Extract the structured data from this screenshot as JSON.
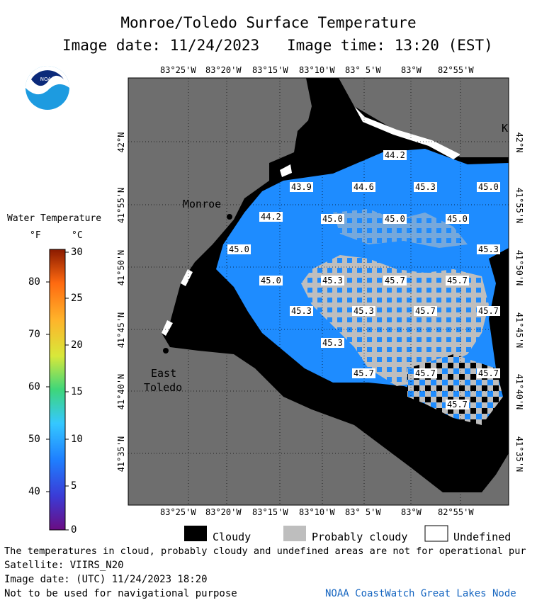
{
  "header": {
    "title": "Monroe/Toledo Surface Temperature",
    "date_label": "Image date: 11/24/2023",
    "time_label": "Image time: 13:20 (EST)"
  },
  "logo": {
    "text": "NOAA"
  },
  "map": {
    "lon_ticks": [
      "83°25'W",
      "83°20'W",
      "83°15'W",
      "83°10'W",
      "83° 5'W",
      "83°W",
      "82°55'W"
    ],
    "lat_ticks": [
      "42°N",
      "41°55'N",
      "41°50'N",
      "41°45'N",
      "41°40'N",
      "41°35'N"
    ],
    "places": {
      "monroe": "Monroe",
      "east": "East",
      "toledo": "Toledo",
      "k": "K"
    },
    "temp_labels": [
      "44.2",
      "43.9",
      "44.6",
      "45.3",
      "45.0",
      "44.2",
      "45.0",
      "45.0",
      "45.0",
      "45.0",
      "45.3",
      "45.0",
      "45.3",
      "45.7",
      "45.7",
      "45.3",
      "45.3",
      "45.7",
      "45.7",
      "45.3",
      "45.7",
      "45.7",
      "45.7",
      "45.7"
    ]
  },
  "colorbar": {
    "title": "Water Temperature",
    "unit_f": "°F",
    "unit_c": "°C",
    "f_ticks": [
      "80",
      "70",
      "60",
      "50",
      "40"
    ],
    "c_ticks": [
      "30",
      "25",
      "20",
      "15",
      "10",
      "5",
      "0"
    ]
  },
  "legend": {
    "cloudy": "Cloudy",
    "probably_cloudy": "Probably cloudy",
    "undefined": "Undefined"
  },
  "footer": {
    "line1": "The temperatures in cloud, probably cloudy and undefined areas are not for operational pur",
    "line2": "Satellite: VIIRS_N20",
    "line3": "Image date: (UTC) 11/24/2023  18:20",
    "line4": "Not to be used for navigational purpose",
    "credit": "NOAA CoastWatch Great Lakes Node"
  },
  "colors": {
    "land": "#6e6e6e",
    "water": "#1e8cff",
    "cloudy": "#000000",
    "probably_cloudy": "#bebebe",
    "undefined": "#ffffff",
    "credit": "#1565c0"
  }
}
